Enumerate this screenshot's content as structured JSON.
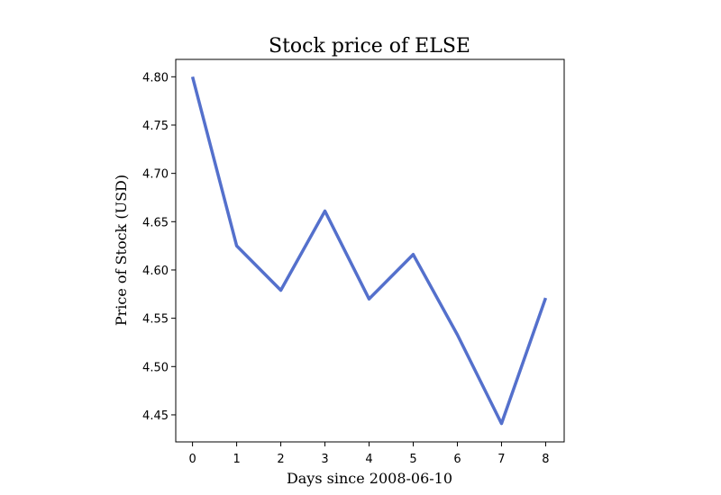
{
  "chart_data": {
    "type": "line",
    "title": "Stock price of ELSE",
    "xlabel": "Days since 2008-06-10",
    "ylabel": "Price of Stock (USD)",
    "x": [
      0,
      1,
      2,
      3,
      4,
      5,
      6,
      7,
      8
    ],
    "x_ticks": [
      "0",
      "1",
      "2",
      "3",
      "4",
      "5",
      "6",
      "7",
      "8"
    ],
    "y_ticks": [
      "4.45",
      "4.50",
      "4.55",
      "4.60",
      "4.65",
      "4.70",
      "4.75",
      "4.80"
    ],
    "xlim": [
      -0.38,
      8.42
    ],
    "ylim": [
      4.422,
      4.818
    ],
    "grid": false,
    "series": [
      {
        "values": [
          4.8,
          4.625,
          4.579,
          4.661,
          4.57,
          4.616,
          4.533,
          4.441,
          4.571
        ],
        "color": "#5470cc"
      }
    ]
  }
}
